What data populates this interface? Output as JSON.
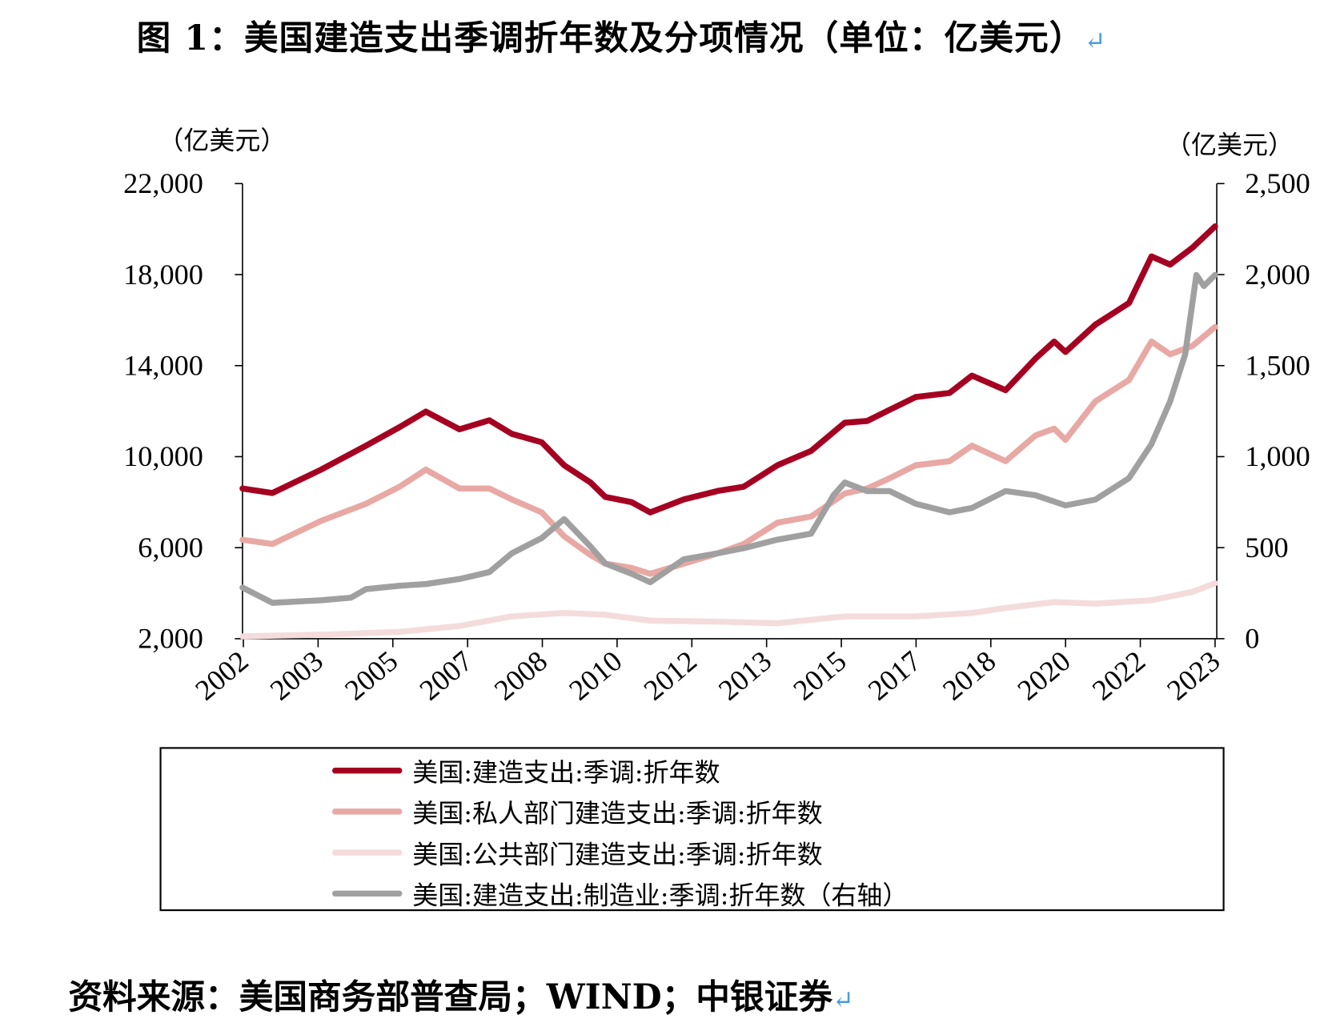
{
  "title": "图 1：美国建造支出季调折年数及分项情况（单位：亿美元）",
  "paragraph_mark": "↵",
  "source": "资料来源：美国商务部普查局；WIND；中银证券",
  "chart_data": {
    "type": "line",
    "ylabel_left": "（亿美元）",
    "ylabel_right": "（亿美元）",
    "ylim_left": [
      2000,
      22000
    ],
    "ylim_right": [
      0,
      2500
    ],
    "yticks_left": [
      "22,000",
      "18,000",
      "14,000",
      "10,000",
      "6,000",
      "2,000"
    ],
    "yticks_right": [
      "2,500",
      "2,000",
      "1,500",
      "1,000",
      "500",
      "0"
    ],
    "xlim": [
      "2002-01",
      "2023-09"
    ],
    "xticks": [
      "2002",
      "2003",
      "2005",
      "2007",
      "2008",
      "2010",
      "2012",
      "2013",
      "2015",
      "2017",
      "2018",
      "2020",
      "2022",
      "2023"
    ],
    "grid": false,
    "legend_position": "bottom",
    "series": [
      {
        "name": "美国:建造支出:季调:折年数",
        "axis": "left",
        "color": "#A50021",
        "x": [
          "2002-01",
          "2002-09",
          "2003-10",
          "2004-10",
          "2005-07",
          "2006-02",
          "2006-11",
          "2007-07",
          "2008-01",
          "2008-09",
          "2009-03",
          "2009-10",
          "2010-02",
          "2010-09",
          "2011-02",
          "2011-11",
          "2012-08",
          "2013-03",
          "2013-12",
          "2014-09",
          "2015-06",
          "2015-12",
          "2016-06",
          "2017-01",
          "2017-10",
          "2018-04",
          "2019-01",
          "2019-09",
          "2020-02",
          "2020-05",
          "2021-01",
          "2021-10",
          "2022-04",
          "2022-09",
          "2023-03",
          "2023-09"
        ],
        "values": [
          8600,
          8400,
          9430,
          10480,
          11300,
          11980,
          11200,
          11600,
          11000,
          10630,
          9620,
          8870,
          8230,
          8000,
          7550,
          8120,
          8490,
          8680,
          9620,
          10250,
          11490,
          11570,
          12060,
          12620,
          12800,
          13560,
          12920,
          14310,
          15060,
          14600,
          15800,
          16750,
          18800,
          18440,
          19190,
          20120
        ]
      },
      {
        "name": "美国:私人部门建造支出:季调:折年数",
        "axis": "left",
        "color": "#E8A8A4",
        "x": [
          "2002-01",
          "2002-09",
          "2003-10",
          "2004-10",
          "2005-07",
          "2006-02",
          "2006-11",
          "2007-07",
          "2008-01",
          "2008-09",
          "2009-03",
          "2009-10",
          "2010-02",
          "2010-09",
          "2011-02",
          "2011-11",
          "2012-08",
          "2013-03",
          "2013-12",
          "2014-09",
          "2015-06",
          "2015-12",
          "2016-06",
          "2017-01",
          "2017-10",
          "2018-04",
          "2019-01",
          "2019-09",
          "2020-02",
          "2020-05",
          "2021-01",
          "2021-10",
          "2022-04",
          "2022-09",
          "2023-03",
          "2023-09"
        ],
        "values": [
          6350,
          6160,
          7180,
          7930,
          8680,
          9430,
          8600,
          8600,
          8120,
          7550,
          6500,
          5680,
          5300,
          5110,
          4850,
          5300,
          5750,
          6160,
          7100,
          7370,
          8380,
          8600,
          9050,
          9620,
          9800,
          10480,
          9800,
          10930,
          11230,
          10740,
          12430,
          13370,
          15060,
          14500,
          14870,
          15700
        ]
      },
      {
        "name": "美国:公共部门建造支出:季调:折年数",
        "axis": "left",
        "color": "#F4DCDC",
        "x": [
          "2002-01",
          "2004-01",
          "2005-07",
          "2006-11",
          "2008-01",
          "2009-03",
          "2010-02",
          "2011-02",
          "2012-08",
          "2013-12",
          "2015-06",
          "2017-01",
          "2018-04",
          "2019-01",
          "2020-02",
          "2021-01",
          "2022-04",
          "2023-03",
          "2023-09"
        ],
        "values": [
          2100,
          2190,
          2300,
          2560,
          2980,
          3130,
          3050,
          2790,
          2750,
          2680,
          2980,
          2980,
          3130,
          3350,
          3610,
          3540,
          3690,
          4060,
          4440
        ]
      },
      {
        "name": "美国:建造支出:制造业:季调:折年数（右轴）",
        "axis": "right",
        "color": "#A0A0A0",
        "x": [
          "2002-01",
          "2002-09",
          "2003-10",
          "2004-06",
          "2004-10",
          "2005-07",
          "2006-02",
          "2006-11",
          "2007-07",
          "2008-01",
          "2008-09",
          "2009-03",
          "2009-10",
          "2010-02",
          "2010-09",
          "2011-02",
          "2011-11",
          "2012-08",
          "2013-03",
          "2013-12",
          "2014-09",
          "2015-03",
          "2015-06",
          "2015-12",
          "2016-06",
          "2017-01",
          "2017-10",
          "2018-04",
          "2019-01",
          "2019-09",
          "2020-05",
          "2021-01",
          "2021-10",
          "2022-04",
          "2022-09",
          "2023-01",
          "2023-04",
          "2023-06",
          "2023-09"
        ],
        "values": [
          281,
          197,
          211,
          225,
          272,
          291,
          300,
          328,
          366,
          469,
          553,
          657,
          507,
          413,
          357,
          310,
          436,
          469,
          497,
          544,
          577,
          788,
          858,
          811,
          811,
          741,
          694,
          718,
          811,
          788,
          732,
          764,
          882,
          1069,
          1304,
          1562,
          1998,
          1937,
          1998
        ]
      }
    ]
  }
}
